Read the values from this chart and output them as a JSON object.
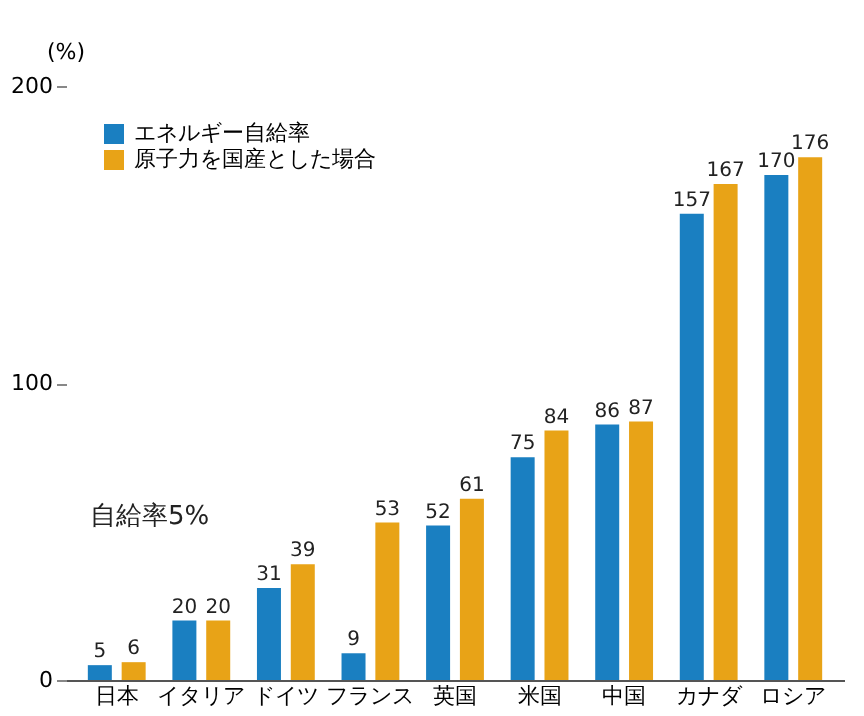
{
  "chart_data": {
    "type": "bar",
    "ylabel": "(%)",
    "categories": [
      "日本",
      "イタリア",
      "ドイツ",
      "フランス",
      "英国",
      "米国",
      "中国",
      "カナダ",
      "ロシア"
    ],
    "series": [
      {
        "name": "エネルギー自給率",
        "color": "#1a7fc1",
        "values": [
          5,
          20,
          31,
          9,
          52,
          75,
          86,
          157,
          170
        ]
      },
      {
        "name": "原子力を国産とした場合",
        "color": "#e8a317",
        "values": [
          6,
          20,
          39,
          53,
          61,
          84,
          87,
          167,
          176
        ]
      }
    ],
    "ylim": [
      0,
      200
    ],
    "yticks": [
      0,
      100,
      200
    ],
    "grid": false,
    "legend": "top left",
    "data_labels": true,
    "annotations": [
      "自給率5%"
    ]
  }
}
